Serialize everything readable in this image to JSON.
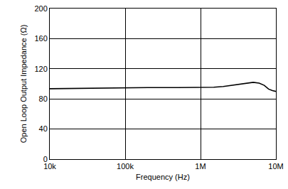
{
  "chart_data": {
    "type": "line",
    "x_label": "Frequency (Hz)",
    "y_label": "Open Loop Output Impedance (Ω)",
    "x": [
      10000,
      20000,
      50000,
      100000,
      200000,
      500000,
      1000000,
      1500000,
      2000000,
      3000000,
      4000000,
      5000000,
      6000000,
      7000000,
      8000000,
      9000000,
      10000000
    ],
    "values": [
      93.5,
      94,
      94.5,
      94.8,
      95,
      95,
      95,
      95.5,
      96.5,
      99,
      101,
      102,
      101,
      98,
      93,
      91,
      90
    ],
    "color": "#000000",
    "log": "x",
    "xlim": [
      10000,
      10000000
    ],
    "xticks": [
      {
        "value": 10000,
        "label": "10k"
      },
      {
        "value": 100000,
        "label": "100k"
      },
      {
        "value": 1000000,
        "label": "1M"
      },
      {
        "value": 10000000,
        "label": "10M"
      }
    ],
    "ylim": [
      0,
      200
    ],
    "yticks": [
      0,
      40,
      80,
      120,
      160,
      200
    ],
    "grid": true
  }
}
